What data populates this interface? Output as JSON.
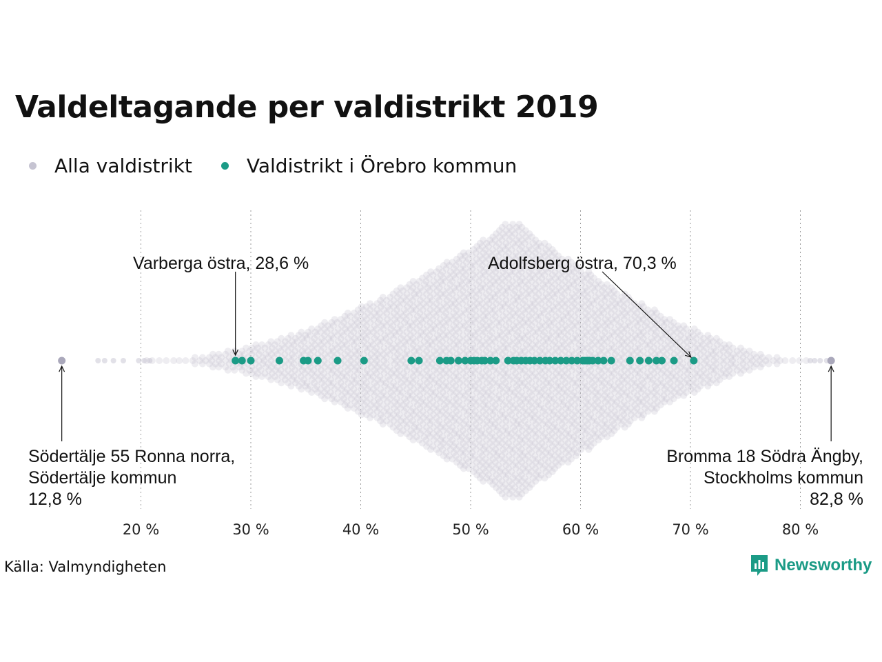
{
  "header": {
    "title": "Valdeltagande per valdistrikt 2019"
  },
  "legend": [
    {
      "label": "Alla valdistrikt",
      "color": "#c6c4d2"
    },
    {
      "label": "Valdistrikt i Örebro kommun",
      "color": "#1b9b86"
    }
  ],
  "footer": {
    "source": "Källa: Valmyndigheten",
    "brand": "Newsworthy"
  },
  "chart_data": {
    "type": "scatter",
    "subtype": "beeswarm",
    "title": "Valdeltagande per valdistrikt 2019",
    "xlabel": "",
    "ylabel": "",
    "xlim": [
      12,
      83.5
    ],
    "x_ticks": [
      20,
      30,
      40,
      50,
      60,
      70,
      80
    ],
    "x_tick_labels": [
      "20 %",
      "30 %",
      "40 %",
      "50 %",
      "60 %",
      "70 %",
      "80 %"
    ],
    "grid": "vertical dotted",
    "legend_position": "top-left",
    "series": [
      {
        "name": "Alla valdistrikt",
        "color": "#c6c4d2",
        "distribution": "dense beeswarm of all voting districts, concentrated between 45 % and 65 % with peak near 53,5 %",
        "extremes": [
          12.8,
          82.8
        ],
        "outlier_values": [
          12.8,
          16.1,
          16.7,
          17.5,
          18.4,
          19.8,
          20.3,
          20.8,
          80.9,
          81.3,
          81.8,
          82.4,
          82.8
        ]
      },
      {
        "name": "Valdistrikt i Örebro kommun",
        "color": "#1b9b86",
        "values": [
          28.6,
          29.2,
          30.0,
          32.6,
          34.8,
          35.2,
          36.1,
          37.9,
          40.3,
          44.6,
          45.3,
          47.2,
          47.8,
          48.2,
          48.9,
          49.5,
          50.0,
          50.3,
          50.6,
          51.0,
          51.3,
          51.8,
          52.3,
          53.4,
          53.9,
          54.2,
          54.6,
          55.0,
          55.4,
          55.8,
          56.3,
          56.8,
          57.2,
          57.7,
          58.2,
          58.7,
          59.2,
          59.7,
          60.2,
          60.4,
          60.6,
          60.8,
          61.1,
          61.6,
          62.1,
          62.8,
          64.5,
          65.4,
          66.2,
          66.9,
          67.4,
          68.5,
          70.3
        ]
      }
    ],
    "annotations": [
      {
        "lines": [
          "Varberga östra, 28,6 %"
        ],
        "value": 28.6,
        "position": "above"
      },
      {
        "lines": [
          "Adolfsberg östra, 70,3 %"
        ],
        "value": 70.3,
        "position": "above"
      },
      {
        "lines": [
          "Södertälje 55 Ronna norra,",
          "Södertälje kommun",
          "12,8 %"
        ],
        "value": 12.8,
        "position": "below-left"
      },
      {
        "lines": [
          "Bromma 18 Södra Ängby,",
          "Stockholms kommun",
          "82,8 %"
        ],
        "value": 82.8,
        "position": "below-right"
      }
    ]
  }
}
